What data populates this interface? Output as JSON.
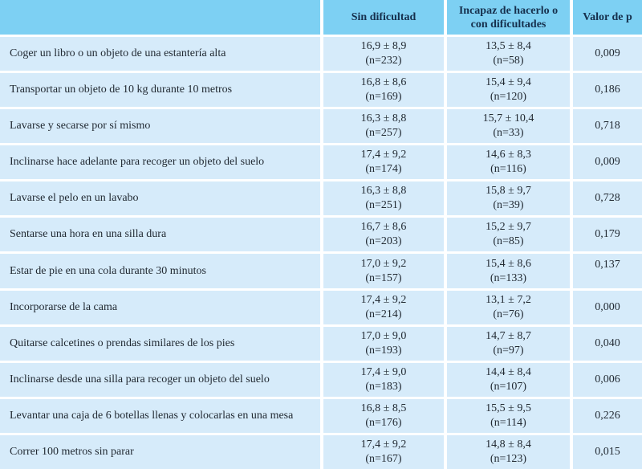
{
  "colors": {
    "header_bg": "#7dd0f3",
    "row_bg": "#d6ebfa",
    "divider": "#ffffff",
    "header_text": "#16304d",
    "body_text": "#222a33"
  },
  "table": {
    "headers": {
      "activity": "",
      "sin": "Sin dificultad",
      "incapaz": "Incapaz de hacerlo o con dificultades",
      "p": "Valor de p"
    },
    "rows": [
      {
        "activity": "Coger un libro o un objeto de una estantería alta",
        "sin_mean": "16,9 ± 8,9",
        "sin_n": "(n=232)",
        "inc_mean": "13,5 ± 8,4",
        "inc_n": "(n=58)",
        "p": "0,009"
      },
      {
        "activity": "Transportar un objeto de 10 kg durante 10 metros",
        "sin_mean": "16,8 ± 8,6",
        "sin_n": "(n=169)",
        "inc_mean": "15,4 ± 9,4",
        "inc_n": "(n=120)",
        "p": "0,186"
      },
      {
        "activity": "Lavarse y secarse por sí mismo",
        "sin_mean": "16,3 ± 8,8",
        "sin_n": "(n=257)",
        "inc_mean": "15,7 ± 10,4",
        "inc_n": "(n=33)",
        "p": "0,718"
      },
      {
        "activity": "Inclinarse hace adelante para recoger un objeto del suelo",
        "sin_mean": "17,4 ± 9,2",
        "sin_n": "(n=174)",
        "inc_mean": "14,6 ± 8,3",
        "inc_n": "(n=116)",
        "p": "0,009"
      },
      {
        "activity": "Lavarse el pelo en un lavabo",
        "sin_mean": "16,3 ± 8,8",
        "sin_n": "(n=251)",
        "inc_mean": "15,8 ± 9,7",
        "inc_n": "(n=39)",
        "p": "0,728"
      },
      {
        "activity": "Sentarse una hora en una silla dura",
        "sin_mean": "16,7 ± 8,6",
        "sin_n": "(n=203)",
        "inc_mean": "15,2 ± 9,7",
        "inc_n": "(n=85)",
        "p": "0,179"
      },
      {
        "activity": "Estar de pie en una cola durante 30 minutos",
        "sin_mean": "17,0 ± 9,2",
        "sin_n": "(n=157)",
        "inc_mean": "15,4 ± 8,6",
        "inc_n": "(n=133)",
        "p": "0,137"
      },
      {
        "activity": "Incorporarse de la cama",
        "sin_mean": "17,4 ± 9,2",
        "sin_n": "(n=214)",
        "inc_mean": "13,1 ± 7,2",
        "inc_n": "(n=76)",
        "p": "0,000"
      },
      {
        "activity": "Quitarse calcetines o prendas similares de los pies",
        "sin_mean": "17,0 ± 9,0",
        "sin_n": "(n=193)",
        "inc_mean": "14,7 ± 8,7",
        "inc_n": "(n=97)",
        "p": "0,040"
      },
      {
        "activity": "Inclinarse desde una silla para recoger un objeto del suelo",
        "sin_mean": "17,4 ± 9,0",
        "sin_n": "(n=183)",
        "inc_mean": "14,4 ± 8,4",
        "inc_n": "(n=107)",
        "p": "0,006"
      },
      {
        "activity": "Levantar una caja de 6 botellas llenas y colocarlas en una mesa",
        "sin_mean": "16,8 ± 8,5",
        "sin_n": "(n=176)",
        "inc_mean": "15,5 ± 9,5",
        "inc_n": "(n=114)",
        "p": "0,226"
      },
      {
        "activity": "Correr 100 metros sin parar",
        "sin_mean": "17,4 ± 9,2",
        "sin_n": "(n=167)",
        "inc_mean": "14,8 ± 8,4",
        "inc_n": "(n=123)",
        "p": "0,015"
      }
    ]
  }
}
